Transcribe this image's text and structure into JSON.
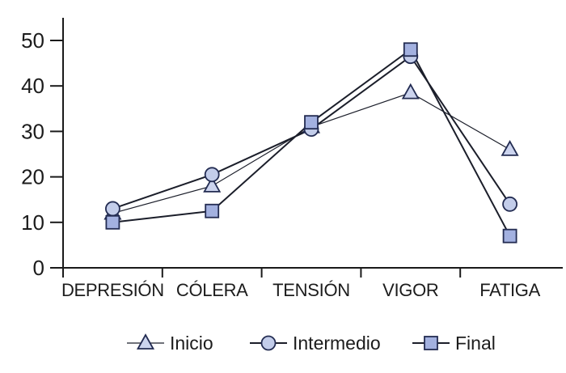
{
  "chart_data": {
    "type": "line",
    "title": "",
    "categories": [
      "DEPRESIÓN",
      "CÓLERA",
      "TENSIÓN",
      "VIGOR",
      "FATIGA"
    ],
    "series": [
      {
        "name": "Inicio",
        "marker": "triangle",
        "values": [
          12,
          18,
          31,
          38.5,
          26
        ],
        "line_width": 1.2,
        "marker_fill": "#ccd4ee"
      },
      {
        "name": "Intermedio",
        "marker": "circle",
        "values": [
          13,
          20.5,
          30.5,
          46.5,
          14
        ],
        "line_width": 2,
        "marker_fill": "#c3cdea"
      },
      {
        "name": "Final",
        "marker": "square",
        "values": [
          10,
          12.5,
          32,
          48,
          7
        ],
        "line_width": 2,
        "marker_fill": "#a3b1e0"
      }
    ],
    "xlabel": "",
    "ylabel": "",
    "ylim": [
      0,
      50
    ],
    "yticks": [
      0,
      10,
      20,
      30,
      40,
      50
    ],
    "grid": false,
    "legend_position": "bottom",
    "legend_entries": [
      "Inicio",
      "Intermedio",
      "Final"
    ],
    "line_color": "#1b1e2a",
    "marker_stroke": "#232c52",
    "axis_color": "#1a1a1a",
    "text_color": "#1c1c1c"
  }
}
